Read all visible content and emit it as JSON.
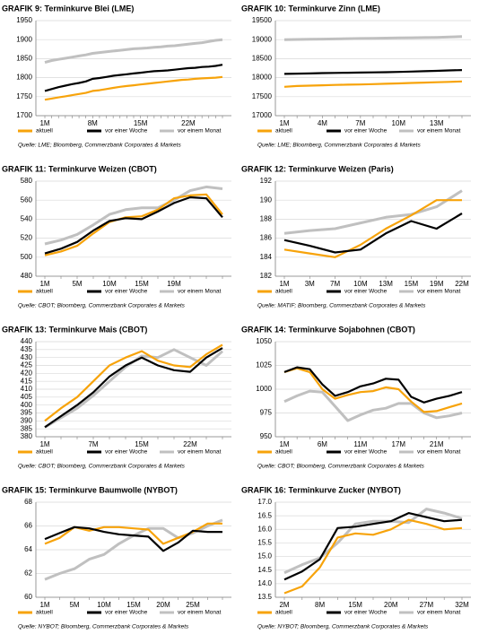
{
  "chart_data": [
    {
      "type": "line",
      "title": "GRAFIK 9: Terminkurve Blei (LME)",
      "source": "Quelle: LME; Bloomberg, Commerzbank Corporates & Markets",
      "categories": [
        "1M",
        null,
        null,
        null,
        null,
        null,
        null,
        "8M",
        null,
        null,
        null,
        null,
        null,
        null,
        "15M",
        null,
        null,
        null,
        null,
        null,
        null,
        "22M",
        null,
        null,
        null,
        null,
        null
      ],
      "ylim": [
        1700,
        1950
      ],
      "yticks": [
        1700,
        1750,
        1800,
        1850,
        1900,
        1950
      ],
      "grid": true,
      "series": [
        {
          "name": "aktuell",
          "color": "#f7a30a",
          "values": [
            1742,
            1745,
            1748,
            1751,
            1754,
            1757,
            1760,
            1765,
            1767,
            1770,
            1773,
            1776,
            1778,
            1780,
            1782,
            1784,
            1786,
            1788,
            1790,
            1792,
            1794,
            1795,
            1797,
            1798,
            1799,
            1800,
            1802
          ]
        },
        {
          "name": "vor einer Woche",
          "color": "#000000",
          "values": [
            1765,
            1770,
            1775,
            1779,
            1783,
            1786,
            1790,
            1797,
            1799,
            1802,
            1805,
            1807,
            1809,
            1811,
            1813,
            1815,
            1817,
            1818,
            1819,
            1821,
            1823,
            1825,
            1826,
            1828,
            1829,
            1831,
            1834
          ]
        },
        {
          "name": "vor einem Monat",
          "color": "#c0c0c0",
          "values": [
            1840,
            1845,
            1848,
            1851,
            1854,
            1857,
            1860,
            1864,
            1866,
            1868,
            1870,
            1872,
            1874,
            1876,
            1877,
            1878,
            1880,
            1881,
            1883,
            1884,
            1886,
            1888,
            1890,
            1892,
            1895,
            1898,
            1900
          ]
        }
      ]
    },
    {
      "type": "line",
      "title": "GRAFIK 10: Terminkurve Zinn (LME)",
      "source": "Quelle: LME; Bloomberg, Commerzbank Corporates & Markets",
      "categories": [
        "1M",
        null,
        null,
        "4M",
        null,
        null,
        "7M",
        null,
        null,
        "10M",
        null,
        null,
        "13M",
        null,
        null
      ],
      "ylim": [
        17000,
        19500
      ],
      "yticks": [
        17000,
        17500,
        18000,
        18500,
        19000,
        19500
      ],
      "grid": true,
      "series": [
        {
          "name": "aktuell",
          "color": "#f7a30a",
          "values": [
            17760,
            17780,
            17790,
            17800,
            17810,
            17815,
            17820,
            17830,
            17840,
            17850,
            17860,
            17870,
            17880,
            17890,
            17900
          ]
        },
        {
          "name": "vor einer Woche",
          "color": "#000000",
          "values": [
            18100,
            18105,
            18110,
            18120,
            18125,
            18130,
            18135,
            18140,
            18145,
            18150,
            18160,
            18170,
            18180,
            18190,
            18200
          ]
        },
        {
          "name": "vor einem Monat",
          "color": "#c0c0c0",
          "values": [
            19000,
            19005,
            19010,
            19015,
            19020,
            19025,
            19030,
            19035,
            19040,
            19045,
            19050,
            19055,
            19060,
            19070,
            19080
          ]
        }
      ]
    },
    {
      "type": "line",
      "title": "GRAFIK 11: Terminkurve Weizen (CBOT)",
      "source": "Quelle: CBOT; Bloomberg, Commerzbank Corporates & Markets",
      "categories": [
        "1M",
        null,
        "5M",
        null,
        "10M",
        null,
        "15M",
        null,
        "19M",
        null,
        null,
        null
      ],
      "ylim": [
        480,
        580
      ],
      "yticks": [
        480,
        500,
        520,
        540,
        560,
        580
      ],
      "grid": true,
      "series": [
        {
          "name": "aktuell",
          "color": "#f7a30a",
          "values": [
            502,
            506,
            512,
            525,
            537,
            542,
            543,
            550,
            562,
            565,
            566,
            545
          ]
        },
        {
          "name": "vor einer Woche",
          "color": "#000000",
          "values": [
            504,
            509,
            516,
            528,
            538,
            541,
            540,
            548,
            557,
            563,
            562,
            542
          ]
        },
        {
          "name": "vor einem Monat",
          "color": "#c0c0c0",
          "values": [
            514,
            518,
            524,
            534,
            545,
            550,
            552,
            552,
            560,
            570,
            574,
            572
          ]
        }
      ]
    },
    {
      "type": "line",
      "title": "GRAFIK 12: Terminkurve Weizen (Paris)",
      "source": "Quelle: MATIF; Bloomberg, Commerzbank Corporates & Markets",
      "categories": [
        "1M",
        "3M",
        "7M",
        "10M",
        "13M",
        "15M",
        "19M",
        "22M"
      ],
      "ylim": [
        182,
        192
      ],
      "yticks": [
        182,
        184,
        186,
        188,
        190,
        192
      ],
      "grid": true,
      "series": [
        {
          "name": "aktuell",
          "color": "#f7a30a",
          "values": [
            184.8,
            184.4,
            184.0,
            185.3,
            187.0,
            188.4,
            190.0,
            190.0
          ]
        },
        {
          "name": "vor einer Woche",
          "color": "#000000",
          "values": [
            185.8,
            185.2,
            184.5,
            184.8,
            186.5,
            187.8,
            187.0,
            188.6
          ]
        },
        {
          "name": "vor einem Monat",
          "color": "#c0c0c0",
          "values": [
            186.5,
            186.8,
            187.0,
            187.6,
            188.2,
            188.5,
            189.3,
            191.0
          ]
        }
      ]
    },
    {
      "type": "line",
      "title": "GRAFIK 13: Terminkurve Mais (CBOT)",
      "source": "Quelle: CBOT; Bloomberg, Commerzbank Corporates & Markets",
      "categories": [
        "1M",
        null,
        null,
        "7M",
        null,
        null,
        "15M",
        null,
        null,
        "22M",
        null,
        null
      ],
      "ylim": [
        380,
        440
      ],
      "yticks": [
        380,
        385,
        390,
        395,
        400,
        405,
        410,
        415,
        420,
        425,
        430,
        435,
        440
      ],
      "grid": true,
      "series": [
        {
          "name": "aktuell",
          "color": "#f7a30a",
          "values": [
            390,
            398,
            405,
            415,
            425,
            430,
            434,
            428,
            425,
            424,
            432,
            438
          ]
        },
        {
          "name": "vor einer Woche",
          "color": "#000000",
          "values": [
            386,
            393,
            400,
            408,
            418,
            425,
            430,
            425,
            422,
            421,
            430,
            436
          ]
        },
        {
          "name": "vor einem Monat",
          "color": "#c0c0c0",
          "values": [
            386,
            392,
            398,
            406,
            415,
            424,
            431,
            430,
            435,
            430,
            425,
            434
          ]
        }
      ]
    },
    {
      "type": "line",
      "title": "GRAFIK 14: Terminkurve Sojabohnen (CBOT)",
      "source": "Quelle: CBOT; Bloomberg, Commerzbank Corporates & Markets",
      "categories": [
        "1M",
        null,
        null,
        "6M",
        null,
        null,
        "11M",
        null,
        null,
        "17M",
        null,
        null,
        "21M",
        null,
        null
      ],
      "ylim": [
        950,
        1050
      ],
      "yticks": [
        950,
        975,
        1000,
        1025,
        1050
      ],
      "grid": true,
      "series": [
        {
          "name": "aktuell",
          "color": "#f7a30a",
          "values": [
            1018,
            1022,
            1018,
            1000,
            990,
            994,
            997,
            998,
            1002,
            1000,
            987,
            976,
            977,
            981,
            985
          ]
        },
        {
          "name": "vor einer Woche",
          "color": "#000000",
          "values": [
            1018,
            1023,
            1021,
            1005,
            993,
            997,
            1003,
            1006,
            1011,
            1010,
            992,
            986,
            990,
            993,
            997
          ]
        },
        {
          "name": "vor einem Monat",
          "color": "#c0c0c0",
          "values": [
            987,
            993,
            998,
            997,
            982,
            967,
            973,
            978,
            980,
            985,
            985,
            975,
            970,
            972,
            975
          ]
        }
      ]
    },
    {
      "type": "line",
      "title": "GRAFIK 15: Terminkurve Baumwolle (NYBOT)",
      "source": "Quelle: NYBOT; Bloomberg, Commerzbank Corporates & Markets",
      "categories": [
        "1M",
        null,
        "5M",
        null,
        "10M",
        null,
        "15M",
        null,
        "20M",
        null,
        "25M",
        null,
        null
      ],
      "ylim": [
        60,
        68
      ],
      "yticks": [
        60,
        62,
        64,
        66,
        68
      ],
      "grid": true,
      "series": [
        {
          "name": "aktuell",
          "color": "#f7a30a",
          "values": [
            64.5,
            65.0,
            65.9,
            65.6,
            65.9,
            65.9,
            65.8,
            65.7,
            64.5,
            65.0,
            65.5,
            66.2,
            66.2
          ]
        },
        {
          "name": "vor einer Woche",
          "color": "#000000",
          "values": [
            64.9,
            65.4,
            65.9,
            65.8,
            65.5,
            65.3,
            65.2,
            65.1,
            63.9,
            64.6,
            65.6,
            65.5,
            65.5
          ]
        },
        {
          "name": "vor einem Monat",
          "color": "#c0c0c0",
          "values": [
            61.5,
            62.0,
            62.4,
            63.2,
            63.6,
            64.5,
            65.2,
            65.8,
            65.8,
            65.0,
            65.4,
            66.0,
            66.5
          ]
        }
      ]
    },
    {
      "type": "line",
      "title": "GRAFIK 16: Terminkurve Zucker (NYBOT)",
      "source": "Quelle: NYBOT; Bloomberg, Commerzbank Corporates & Markets",
      "categories": [
        "2M",
        null,
        "8M",
        null,
        "15M",
        null,
        "20M",
        null,
        "27M",
        null,
        "32M"
      ],
      "ylim": [
        13.5,
        17.0
      ],
      "yticks": [
        13.5,
        {
          "value": 14,
          "label": "14.0"
        },
        14.5,
        {
          "value": 15,
          "label": "15.0"
        },
        15.5,
        {
          "value": 16,
          "label": "16.0"
        },
        16.5,
        {
          "value": 17,
          "label": "17.0"
        }
      ],
      "grid": true,
      "series": [
        {
          "name": "aktuell",
          "color": "#f7a30a",
          "values": [
            13.65,
            13.9,
            14.6,
            15.7,
            15.85,
            15.8,
            16.0,
            16.35,
            16.2,
            16.0,
            16.05
          ]
        },
        {
          "name": "vor einer Woche",
          "color": "#000000",
          "values": [
            14.15,
            14.45,
            14.9,
            16.05,
            16.1,
            16.2,
            16.3,
            16.6,
            16.45,
            16.3,
            16.35
          ]
        },
        {
          "name": "vor einem Monat",
          "color": "#c0c0c0",
          "values": [
            14.4,
            14.7,
            14.95,
            15.5,
            16.2,
            16.3,
            16.3,
            16.25,
            16.75,
            16.6,
            16.4
          ]
        }
      ]
    }
  ]
}
